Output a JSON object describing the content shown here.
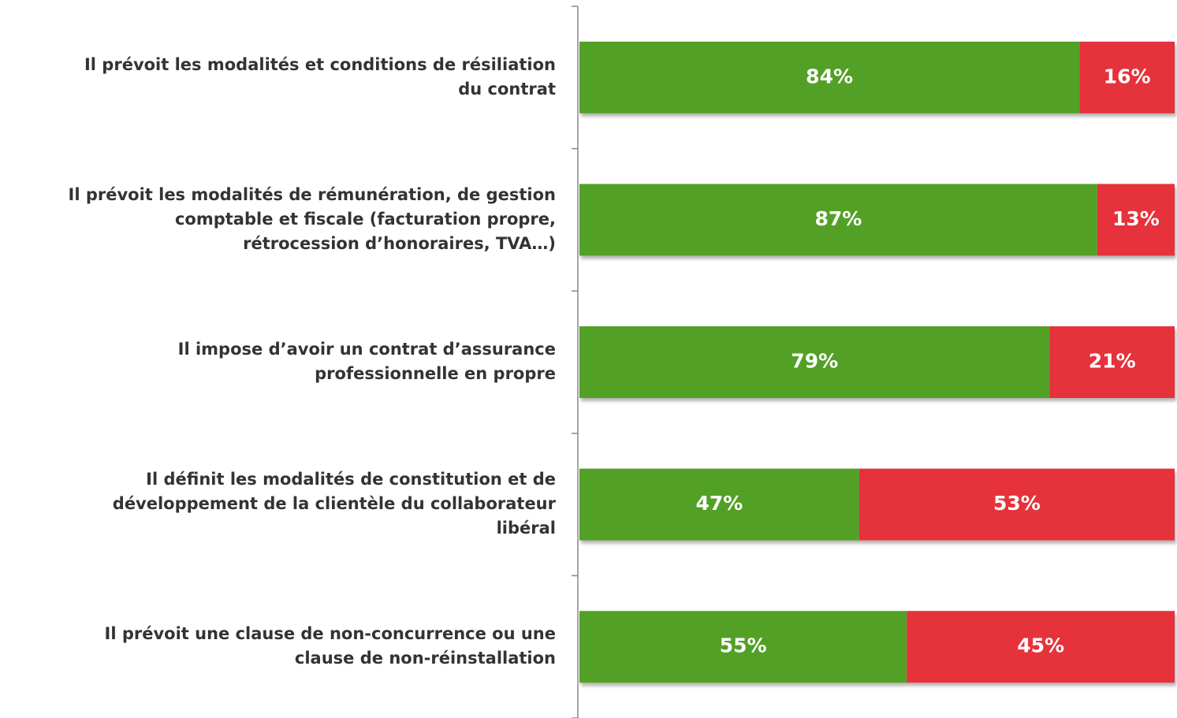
{
  "chart_data": {
    "type": "stacked_bar_horizontal",
    "categories": [
      [
        "Il prévoit les modalités et conditions de résiliation",
        "du contrat"
      ],
      [
        "Il prévoit les modalités de rémunération, de gestion",
        "comptable et fiscale (facturation propre,",
        "rétrocession d’honoraires, TVA…)"
      ],
      [
        "Il impose d’avoir un contrat d’assurance",
        "professionnelle en propre"
      ],
      [
        "Il définit les modalités de constitution et de",
        "développement de la clientèle du collaborateur",
        "libéral"
      ],
      [
        "Il prévoit une clause de non-concurrence ou une",
        "clause de non-réinstallation"
      ]
    ],
    "series": [
      {
        "color": "#52a028",
        "values": [
          84,
          87,
          79,
          47,
          55
        ],
        "value_labels": [
          "84%",
          "87%",
          "79%",
          "47%",
          "55%"
        ]
      },
      {
        "color": "#e5323a",
        "values": [
          16,
          13,
          21,
          53,
          45
        ],
        "value_labels": [
          "16%",
          "13%",
          "21%",
          "53%",
          "45%"
        ]
      }
    ],
    "xlim": [
      0,
      100
    ]
  }
}
